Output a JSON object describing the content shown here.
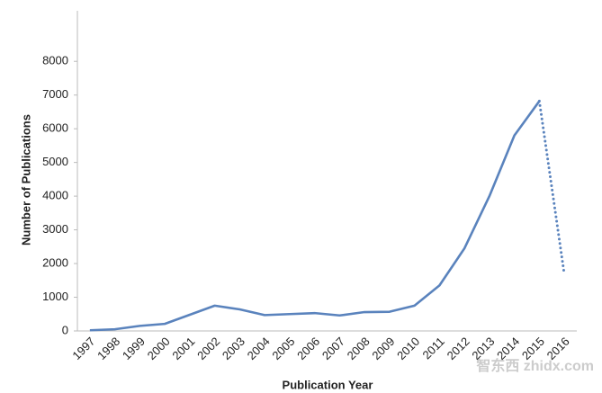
{
  "chart_data": {
    "type": "line",
    "x_label": "Publication Year",
    "y_label": "Number of Publications",
    "categories": [
      "1997",
      "1998",
      "1999",
      "2000",
      "2001",
      "2002",
      "2003",
      "2004",
      "2005",
      "2006",
      "2007",
      "2008",
      "2009",
      "2010",
      "2011",
      "2012",
      "2013",
      "2014",
      "2015",
      "2016"
    ],
    "series": [
      {
        "color": "#5a83bd",
        "line_style": "solid",
        "values": [
          20,
          50,
          150,
          210,
          480,
          750,
          640,
          470,
          500,
          530,
          460,
          560,
          570,
          750,
          1350,
          2450,
          4000,
          5800,
          6820,
          null
        ]
      },
      {
        "color": "#5a83bd",
        "line_style": "dotted",
        "values": [
          null,
          null,
          null,
          null,
          null,
          null,
          null,
          null,
          null,
          null,
          null,
          null,
          null,
          null,
          null,
          null,
          null,
          null,
          6820,
          1680
        ]
      }
    ],
    "ylim": [
      0,
      9500
    ],
    "yticks": [
      0,
      1000,
      2000,
      3000,
      4000,
      5000,
      6000,
      7000,
      8000
    ],
    "grid": false,
    "watermark": "智东西 zhidx.com"
  }
}
